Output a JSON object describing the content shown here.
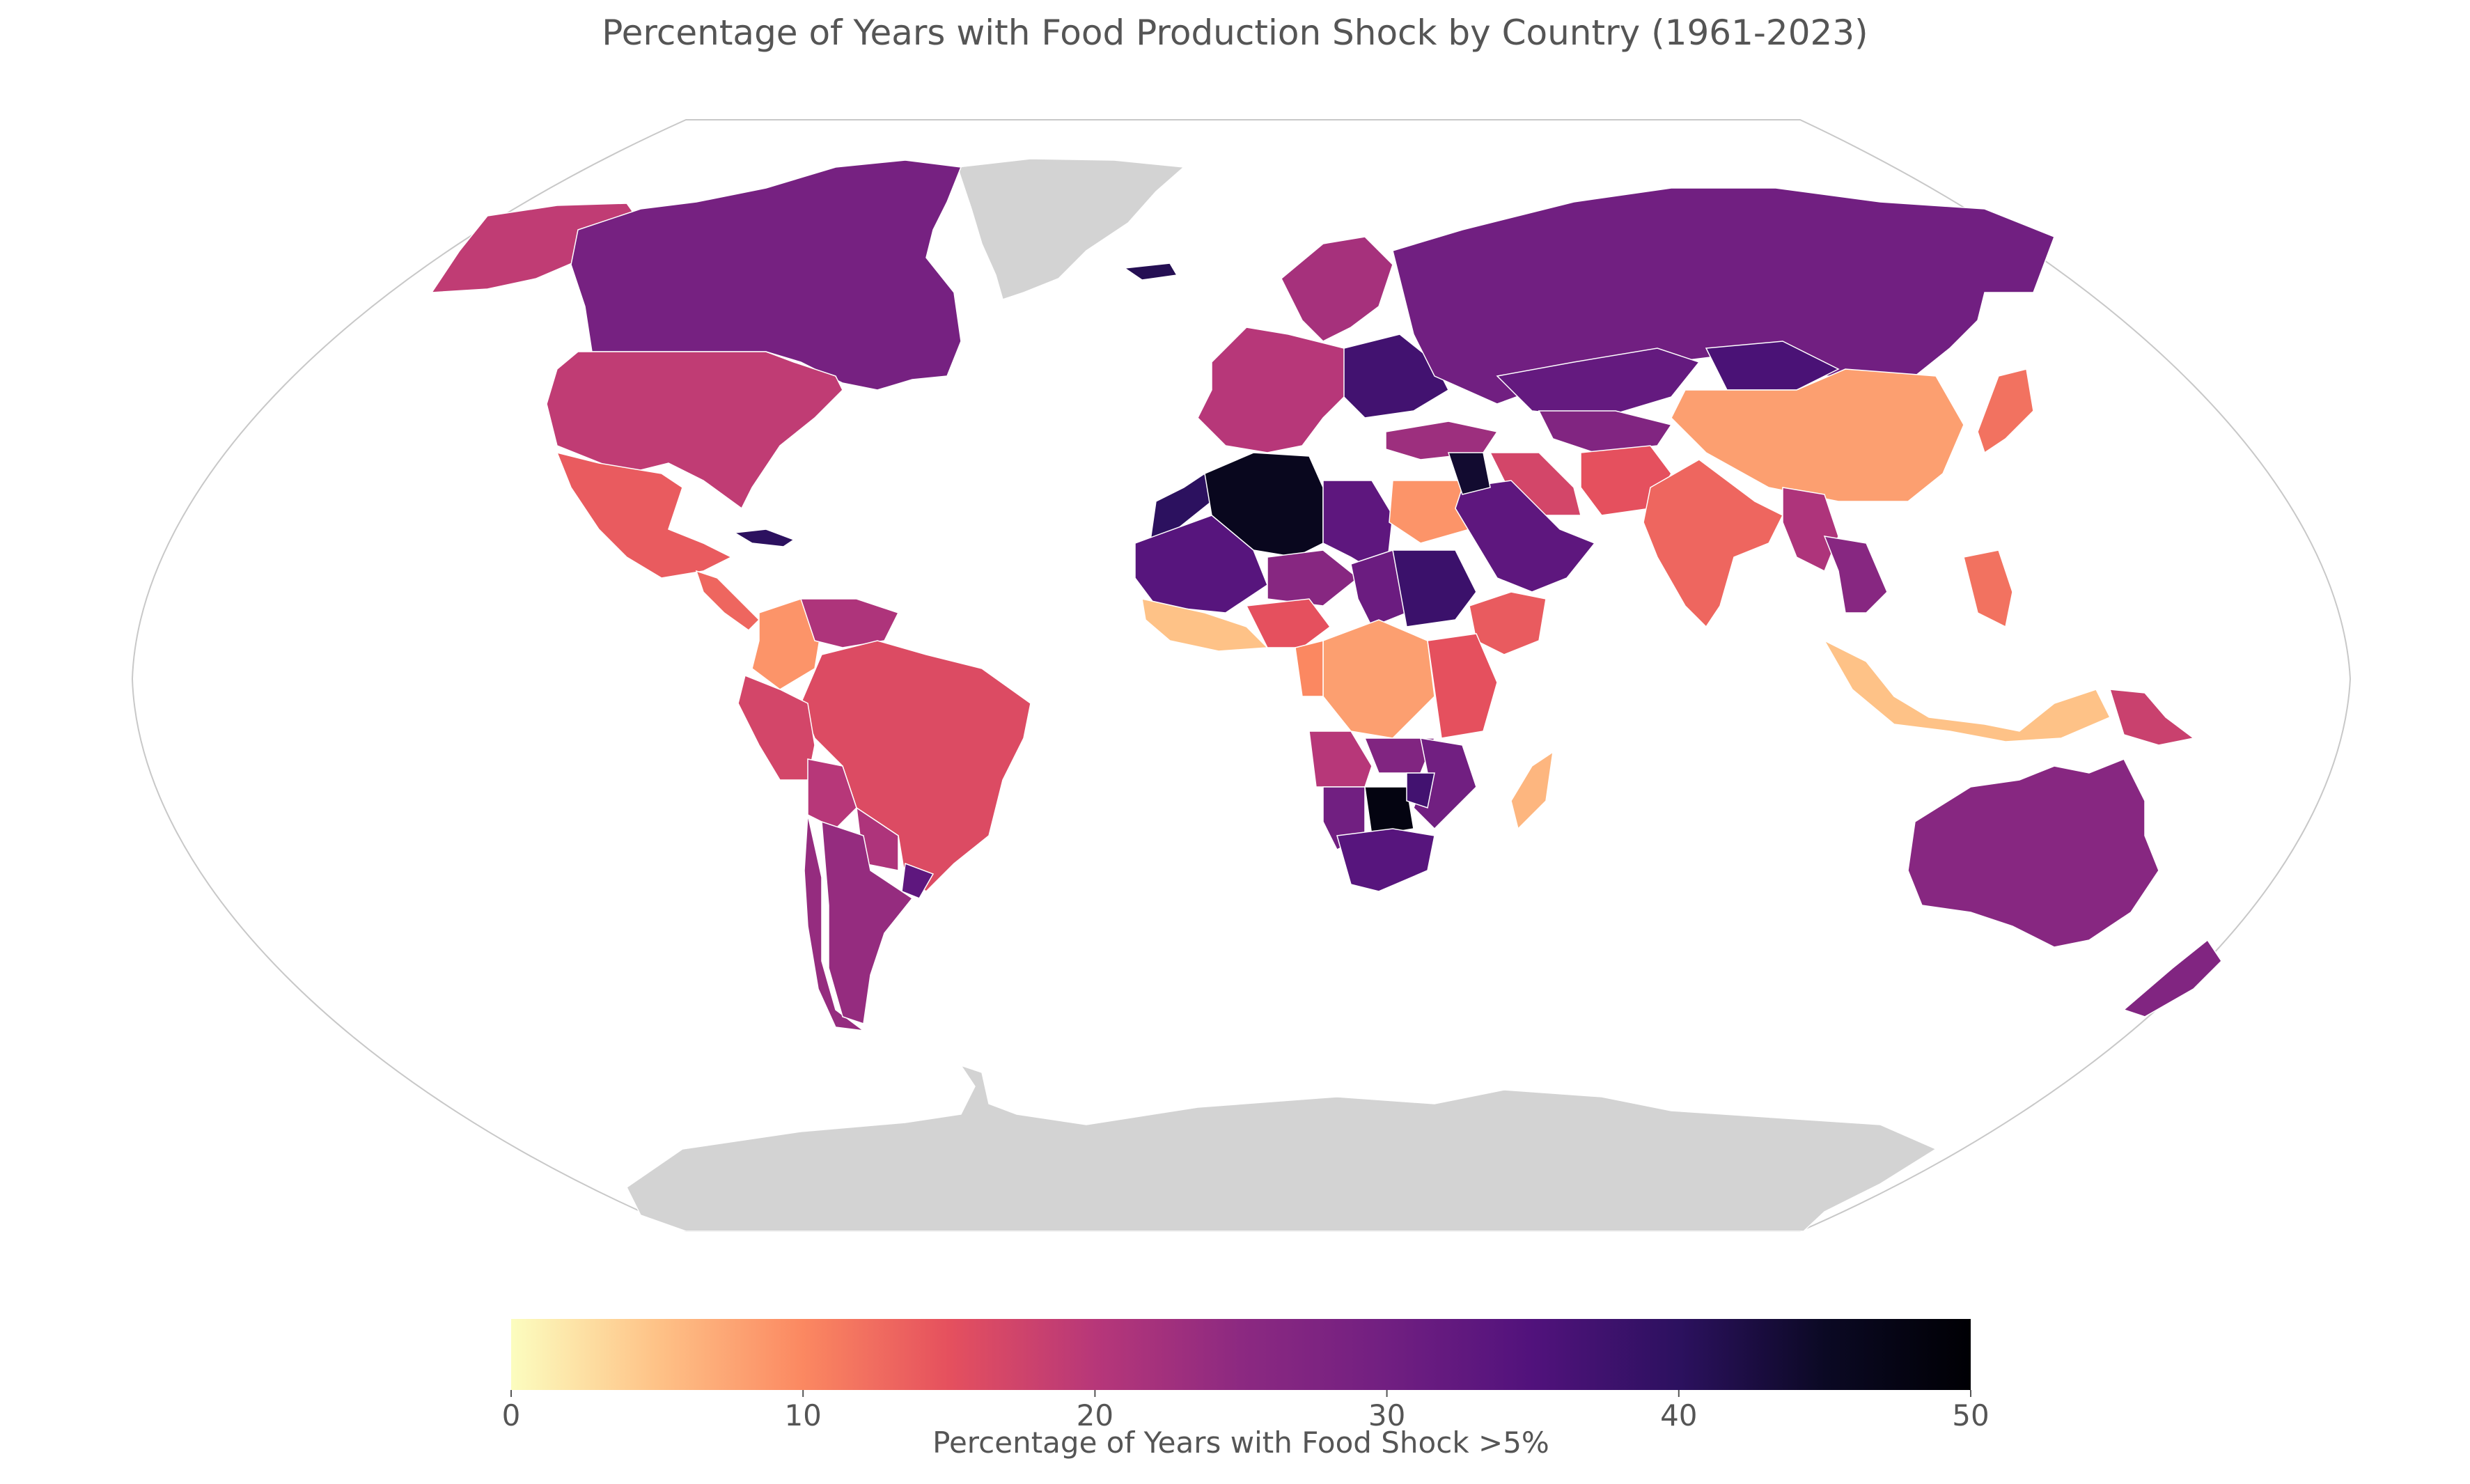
{
  "title": "Percentage of Years with Food Production Shock by Country (1961-2023)",
  "colorbar": {
    "label": "Percentage of Years with Food Shock >5%",
    "min": 0,
    "max": 50,
    "ticks": [
      "0",
      "10",
      "20",
      "30",
      "40",
      "50"
    ],
    "colormap": "magma_r",
    "stops": [
      "#fcfdbf",
      "#fec287",
      "#fb8861",
      "#e5505e",
      "#b73779",
      "#8c2981",
      "#711f81",
      "#51127c",
      "#2c115f",
      "#0b0924",
      "#000004"
    ]
  },
  "chart_data": {
    "type": "choropleth",
    "projection": "Robinson",
    "no_data_color": "#d3d3d3",
    "regions": [
      {
        "name": "Greenland",
        "value": null
      },
      {
        "name": "Antarctica",
        "value": null
      },
      {
        "name": "Alaska (USA)",
        "value": 19
      },
      {
        "name": "Canada",
        "value": 29
      },
      {
        "name": "United States",
        "value": 19
      },
      {
        "name": "Mexico",
        "value": 14
      },
      {
        "name": "Central America",
        "value": 13
      },
      {
        "name": "Cuba",
        "value": 40
      },
      {
        "name": "Colombia",
        "value": 9
      },
      {
        "name": "Venezuela",
        "value": 21
      },
      {
        "name": "Brazil",
        "value": 16
      },
      {
        "name": "Peru",
        "value": 17
      },
      {
        "name": "Bolivia",
        "value": 20
      },
      {
        "name": "Paraguay",
        "value": 21
      },
      {
        "name": "Uruguay",
        "value": 33
      },
      {
        "name": "Chile",
        "value": 24
      },
      {
        "name": "Argentina",
        "value": 24
      },
      {
        "name": "Iceland",
        "value": 41
      },
      {
        "name": "Scandinavia",
        "value": 22
      },
      {
        "name": "Western Europe",
        "value": 20
      },
      {
        "name": "Eastern Europe",
        "value": 37
      },
      {
        "name": "Russia",
        "value": 30
      },
      {
        "name": "Kazakhstan",
        "value": 32
      },
      {
        "name": "Mongolia",
        "value": 36
      },
      {
        "name": "China",
        "value": 8
      },
      {
        "name": "Japan",
        "value": 12
      },
      {
        "name": "Turkey",
        "value": 23
      },
      {
        "name": "Iran",
        "value": 17
      },
      {
        "name": "Central Asia",
        "value": 27
      },
      {
        "name": "Afghanistan / Pakistan",
        "value": 15
      },
      {
        "name": "India",
        "value": 13
      },
      {
        "name": "Myanmar",
        "value": 21
      },
      {
        "name": "Thailand",
        "value": 26
      },
      {
        "name": "Indonesia",
        "value": 5
      },
      {
        "name": "Philippines",
        "value": 12
      },
      {
        "name": "Papua New Guinea",
        "value": 18
      },
      {
        "name": "Australia",
        "value": 26
      },
      {
        "name": "New Zealand",
        "value": 27
      },
      {
        "name": "Morocco",
        "value": 40
      },
      {
        "name": "Algeria",
        "value": 46
      },
      {
        "name": "Libya",
        "value": 33
      },
      {
        "name": "Egypt",
        "value": 9
      },
      {
        "name": "Mauritania / Mali",
        "value": 34
      },
      {
        "name": "Niger",
        "value": 26
      },
      {
        "name": "Chad",
        "value": 31
      },
      {
        "name": "Sudan",
        "value": 38
      },
      {
        "name": "Saudi Arabia / Yemen",
        "value": 33
      },
      {
        "name": "Jordan / Israel",
        "value": 44
      },
      {
        "name": "Ethiopia / Somalia",
        "value": 14
      },
      {
        "name": "West Africa",
        "value": 5
      },
      {
        "name": "Nigeria",
        "value": 15
      },
      {
        "name": "DR Congo",
        "value": 8
      },
      {
        "name": "Central Africa",
        "value": 10
      },
      {
        "name": "Tanzania / Kenya",
        "value": 15
      },
      {
        "name": "Angola",
        "value": 20
      },
      {
        "name": "Zambia",
        "value": 27
      },
      {
        "name": "Mozambique / Malawi",
        "value": 30
      },
      {
        "name": "Namibia",
        "value": 30
      },
      {
        "name": "Botswana",
        "value": 48
      },
      {
        "name": "Zimbabwe",
        "value": 37
      },
      {
        "name": "South Africa",
        "value": 34
      },
      {
        "name": "Madagascar",
        "value": 6
      }
    ]
  }
}
